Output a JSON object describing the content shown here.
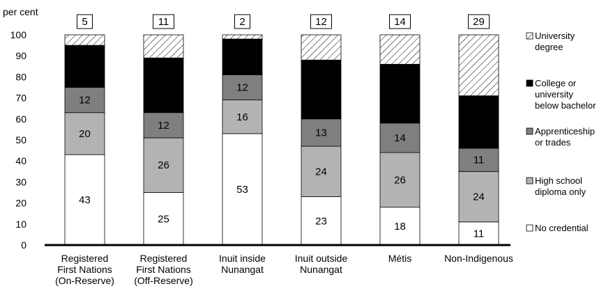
{
  "chart_data": {
    "type": "bar",
    "stacked": true,
    "ylabel": "per cent",
    "ylim": [
      0,
      100
    ],
    "yticks": [
      0,
      10,
      20,
      30,
      40,
      50,
      60,
      70,
      80,
      90,
      100
    ],
    "grid": false,
    "legend_position": "right",
    "categories": [
      [
        "Registered",
        "First Nations",
        "(On-Reserve)"
      ],
      [
        "Registered",
        "First Nations",
        "(Off-Reserve)"
      ],
      [
        "Inuit inside",
        "Nunangat"
      ],
      [
        "Inuit outside",
        "Nunangat"
      ],
      [
        "Métis"
      ],
      [
        "Non-Indigenous"
      ]
    ],
    "series": [
      {
        "name": [
          "No credential"
        ],
        "values": [
          43,
          25,
          53,
          23,
          18,
          11
        ],
        "color": "#ffffff",
        "pattern": "none"
      },
      {
        "name": [
          "High school",
          "diploma only"
        ],
        "values": [
          20,
          26,
          16,
          24,
          26,
          24
        ],
        "color": "#b3b3b3",
        "pattern": "none"
      },
      {
        "name": [
          "Apprenticeship",
          "or trades"
        ],
        "values": [
          12,
          12,
          12,
          13,
          14,
          11
        ],
        "color": "#7f7f7f",
        "pattern": "none"
      },
      {
        "name": [
          "College or",
          "university",
          "below bachelor"
        ],
        "values": [
          20,
          26,
          17,
          28,
          28,
          25
        ],
        "color": "#000000",
        "pattern": "none"
      },
      {
        "name": [
          "University",
          "degree"
        ],
        "values": [
          5,
          11,
          2,
          12,
          14,
          29
        ],
        "color": "#ffffff",
        "pattern": "hatch"
      }
    ],
    "label_colors": [
      "#000000",
      "#000000",
      "#ffffff",
      "#ffffff",
      "#000000"
    ],
    "top_labels": [
      5,
      11,
      2,
      12,
      14,
      29
    ],
    "unlabeled_series_index": 4
  }
}
